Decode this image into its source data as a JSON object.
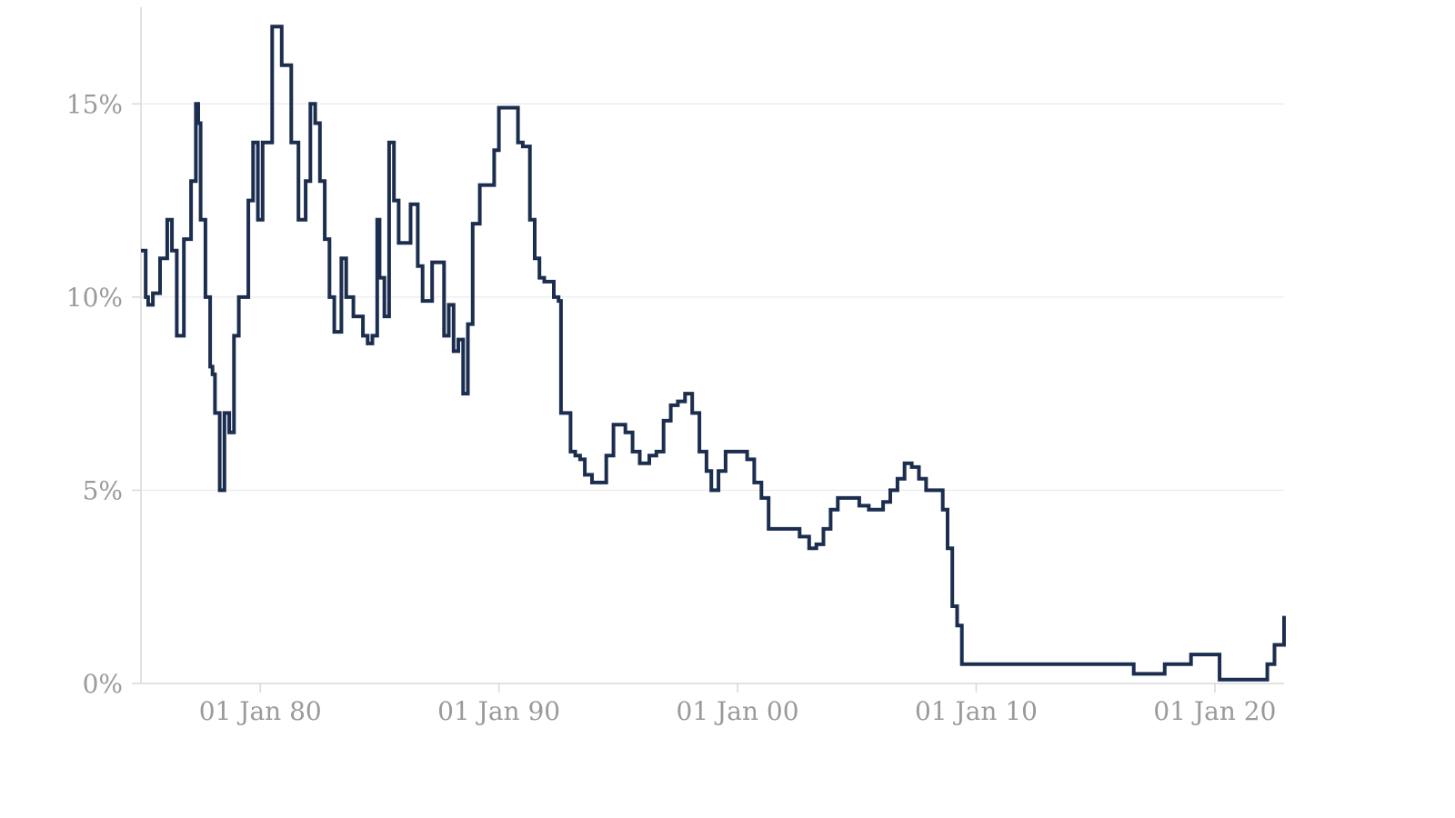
{
  "chart_data": {
    "type": "line",
    "title": "",
    "xlabel": "",
    "ylabel": "",
    "grid": true,
    "legend": "none",
    "xlim": [
      1975.0,
      2022.9
    ],
    "ylim": [
      0,
      17.5
    ],
    "y_ticks": [
      {
        "value": 0,
        "label": "0%"
      },
      {
        "value": 5,
        "label": "5%"
      },
      {
        "value": 10,
        "label": "10%"
      },
      {
        "value": 15,
        "label": "15%"
      }
    ],
    "x_ticks": [
      {
        "value": 1980,
        "label": "01 Jan 80"
      },
      {
        "value": 1990,
        "label": "01 Jan 90"
      },
      {
        "value": 2000,
        "label": "01 Jan 00"
      },
      {
        "value": 2010,
        "label": "01 Jan 10"
      },
      {
        "value": 2020,
        "label": "01 Jan 20"
      }
    ],
    "series": [
      {
        "color": "#1c2e4f",
        "x": [
          1975.0,
          1975.2,
          1975.3,
          1975.5,
          1975.8,
          1976.1,
          1976.3,
          1976.5,
          1976.8,
          1977.0,
          1977.1,
          1977.3,
          1977.4,
          1977.5,
          1977.7,
          1977.9,
          1978.0,
          1978.1,
          1978.3,
          1978.5,
          1978.7,
          1978.9,
          1979.1,
          1979.3,
          1979.5,
          1979.7,
          1979.9,
          1980.1,
          1980.3,
          1980.5,
          1980.6,
          1980.9,
          1981.1,
          1981.3,
          1981.6,
          1981.8,
          1981.9,
          1982.1,
          1982.3,
          1982.5,
          1982.7,
          1982.9,
          1983.1,
          1983.4,
          1983.6,
          1983.9,
          1984.3,
          1984.5,
          1984.7,
          1984.9,
          1985.0,
          1985.2,
          1985.4,
          1985.6,
          1985.8,
          1986.0,
          1986.3,
          1986.6,
          1986.8,
          1987.0,
          1987.2,
          1987.5,
          1987.7,
          1987.9,
          1988.1,
          1988.3,
          1988.5,
          1988.7,
          1988.9,
          1989.2,
          1989.5,
          1989.8,
          1990.0,
          1990.3,
          1990.5,
          1990.8,
          1991.0,
          1991.3,
          1991.5,
          1991.7,
          1991.9,
          1992.1,
          1992.3,
          1992.5,
          1992.6,
          1993.0,
          1993.2,
          1993.4,
          1993.6,
          1993.9,
          1994.2,
          1994.5,
          1994.8,
          1995.0,
          1995.3,
          1995.6,
          1995.9,
          1996.3,
          1996.6,
          1996.9,
          1997.2,
          1997.5,
          1997.8,
          1998.1,
          1998.4,
          1998.7,
          1998.9,
          1999.2,
          1999.5,
          1999.8,
          2000.1,
          2000.4,
          2000.7,
          2001.0,
          2001.3,
          2001.6,
          2001.9,
          2002.2,
          2002.6,
          2003.0,
          2003.3,
          2003.6,
          2003.9,
          2004.2,
          2004.5,
          2004.8,
          2005.1,
          2005.5,
          2005.8,
          2006.1,
          2006.4,
          2006.7,
          2007.0,
          2007.3,
          2007.6,
          2007.9,
          2008.2,
          2008.6,
          2008.8,
          2009.0,
          2009.2,
          2009.4,
          2009.6,
          2010.5,
          2012.0,
          2014.0,
          2016.0,
          2016.6,
          2017.2,
          2017.9,
          2018.6,
          2019.0,
          2019.6,
          2020.0,
          2020.2,
          2020.8,
          2021.5,
          2021.9,
          2022.2,
          2022.5,
          2022.9
        ],
        "values": [
          11.2,
          10.0,
          9.8,
          10.1,
          11.0,
          12.0,
          11.2,
          9.0,
          11.5,
          11.5,
          13.0,
          15.0,
          14.5,
          12.0,
          10.0,
          8.2,
          8.0,
          7.0,
          5.0,
          7.0,
          6.5,
          9.0,
          10.0,
          10.0,
          12.5,
          14.0,
          12.0,
          14.0,
          14.0,
          17.0,
          17.0,
          16.0,
          16.0,
          14.0,
          12.0,
          12.0,
          13.0,
          15.0,
          14.5,
          13.0,
          11.5,
          10.0,
          9.1,
          11.0,
          10.0,
          9.5,
          9.0,
          8.8,
          9.0,
          12.0,
          10.5,
          9.5,
          14.0,
          12.5,
          11.4,
          11.4,
          12.4,
          10.8,
          9.9,
          9.9,
          10.9,
          10.9,
          9.0,
          9.8,
          8.6,
          8.9,
          7.5,
          9.3,
          11.9,
          12.9,
          12.9,
          13.8,
          14.9,
          14.9,
          14.9,
          14.0,
          13.9,
          12.0,
          11.0,
          10.5,
          10.4,
          10.4,
          10.0,
          9.9,
          7.0,
          6.0,
          5.9,
          5.8,
          5.4,
          5.2,
          5.2,
          5.9,
          6.7,
          6.7,
          6.5,
          6.0,
          5.7,
          5.9,
          6.0,
          6.8,
          7.2,
          7.3,
          7.5,
          7.0,
          6.0,
          5.5,
          5.0,
          5.5,
          6.0,
          6.0,
          6.0,
          5.8,
          5.2,
          4.8,
          4.0,
          4.0,
          4.0,
          4.0,
          3.8,
          3.5,
          3.6,
          4.0,
          4.5,
          4.8,
          4.8,
          4.8,
          4.6,
          4.5,
          4.5,
          4.7,
          5.0,
          5.3,
          5.7,
          5.6,
          5.3,
          5.0,
          5.0,
          4.5,
          3.5,
          2.0,
          1.5,
          0.5,
          0.5,
          0.5,
          0.5,
          0.5,
          0.5,
          0.25,
          0.25,
          0.5,
          0.5,
          0.75,
          0.75,
          0.75,
          0.1,
          0.1,
          0.1,
          0.1,
          0.5,
          1.0,
          1.75
        ]
      }
    ]
  }
}
